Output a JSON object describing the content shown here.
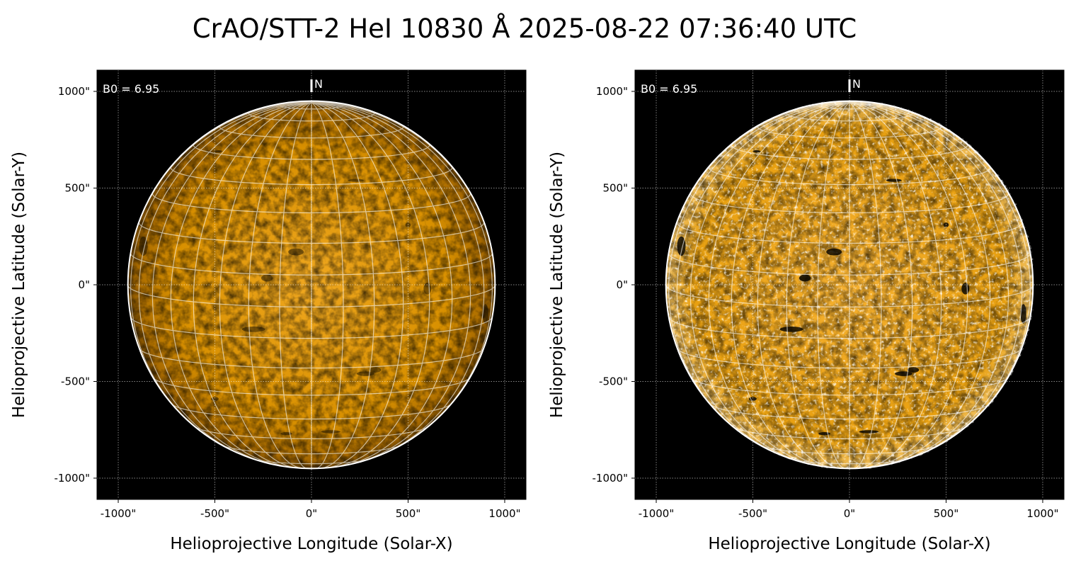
{
  "title": "CrAO/STT-2 HeI 10830 Å 2025-08-22 07:36:40 UTC",
  "chart_data": [
    {
      "type": "image",
      "xlabel": "Helioprojective Longitude (Solar-X)",
      "ylabel": "Helioprojective Latitude (Solar-Y)",
      "xlim": [
        -1110,
        1110
      ],
      "ylim": [
        -1110,
        1110
      ],
      "xticks": [
        -1000,
        -500,
        0,
        500,
        1000
      ],
      "yticks": [
        -1000,
        -500,
        0,
        500,
        1000
      ],
      "xtick_labels": [
        "-1000\"",
        "-500\"",
        "0\"",
        "500\"",
        "1000\""
      ],
      "ytick_labels": [
        "-1000\"",
        "-500\"",
        "0\"",
        "500\"",
        "1000\""
      ],
      "annotation": "B0 = 6.95",
      "north_label": "N",
      "b0_deg": 6.95,
      "solar_radius_arcsec": 950,
      "grid": true,
      "colormap": "orange (HeI 10830)",
      "colors": {
        "disk": "#d88f00",
        "background": "#000000",
        "grid": "#ffffff"
      }
    },
    {
      "type": "image",
      "xlabel": "Helioprojective Longitude (Solar-X)",
      "ylabel": "Helioprojective Latitude (Solar-Y)",
      "xlim": [
        -1110,
        1110
      ],
      "ylim": [
        -1110,
        1110
      ],
      "xticks": [
        -1000,
        -500,
        0,
        500,
        1000
      ],
      "yticks": [
        -1000,
        -500,
        0,
        500,
        1000
      ],
      "xtick_labels": [
        "-1000\"",
        "-500\"",
        "0\"",
        "500\"",
        "1000\""
      ],
      "ytick_labels": [
        "-1000\"",
        "-500\"",
        "0\"",
        "500\"",
        "1000\""
      ],
      "annotation": "B0 = 6.95",
      "north_label": "N",
      "b0_deg": 6.95,
      "solar_radius_arcsec": 950,
      "grid": true,
      "colormap": "orange (HeI 10830, enhanced contrast)",
      "colors": {
        "disk": "#e8a010",
        "background": "#000000",
        "grid": "#ffffff"
      }
    }
  ]
}
